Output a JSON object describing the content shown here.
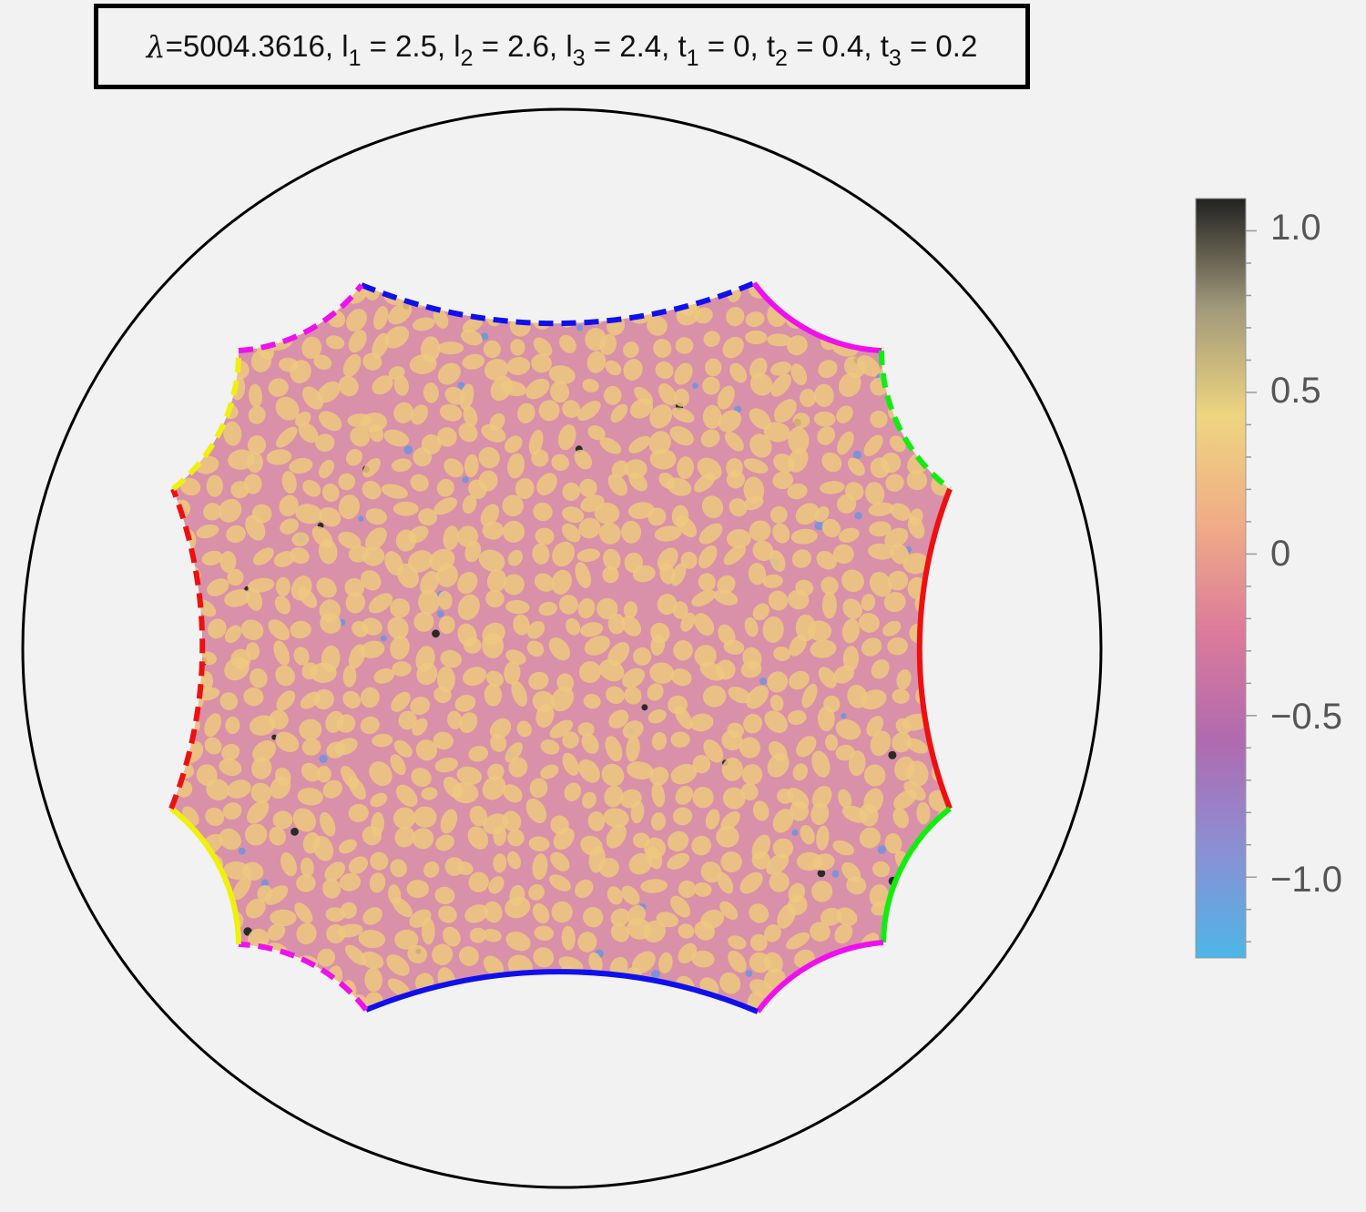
{
  "title": {
    "lambda_label": "λ",
    "lambda_value": "=5004.3616",
    "params": [
      {
        "sym": "l",
        "sub": "1",
        "val": " = 2.5"
      },
      {
        "sym": "l",
        "sub": "2",
        "val": " = 2.6"
      },
      {
        "sym": "l",
        "sub": "3",
        "val": " = 2.4"
      },
      {
        "sym": "t",
        "sub": "1",
        "val": " = 0"
      },
      {
        "sym": "t",
        "sub": "2",
        "val": " = 0.4"
      },
      {
        "sym": "t",
        "sub": "3",
        "val": " = 0.2"
      }
    ]
  },
  "colorbar": {
    "tick_labels": [
      "1.0",
      "0.5",
      "0",
      "−0.5",
      "−1.0"
    ],
    "tick_values": [
      1.0,
      0.5,
      0,
      -0.5,
      -1.0
    ],
    "range": [
      -1.25,
      1.1
    ],
    "colors": [
      "#4db6e8",
      "#8b8fd4",
      "#b06aaf",
      "#dc7a9b",
      "#f0ac86",
      "#eed580",
      "#a0987a",
      "#222222"
    ]
  },
  "boundary_colors": {
    "blue": "#1010ee",
    "magenta": "#ee10ee",
    "green": "#10ee10",
    "red": "#ee1010",
    "yellow": "#f0f010"
  }
}
